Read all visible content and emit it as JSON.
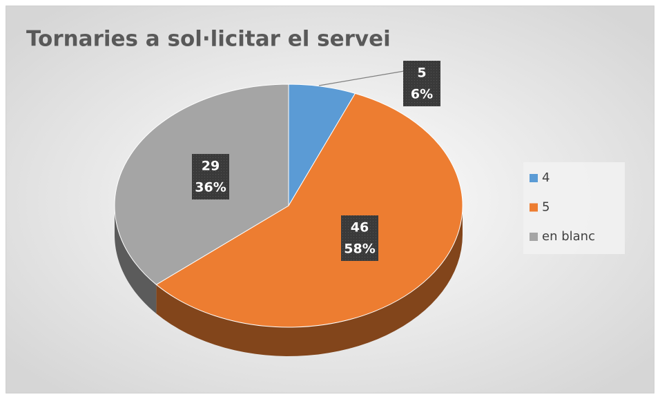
{
  "chart_data": {
    "type": "pie",
    "title": "Tornaries a sol·licitar el servei",
    "categories": [
      "4",
      "5",
      "en blanc"
    ],
    "values": [
      5,
      46,
      29
    ],
    "percent_labels": [
      "6%",
      "58%",
      "36%"
    ],
    "colors": [
      "#5b9bd5",
      "#ed7d31",
      "#a5a5a5"
    ],
    "legend": "right"
  }
}
